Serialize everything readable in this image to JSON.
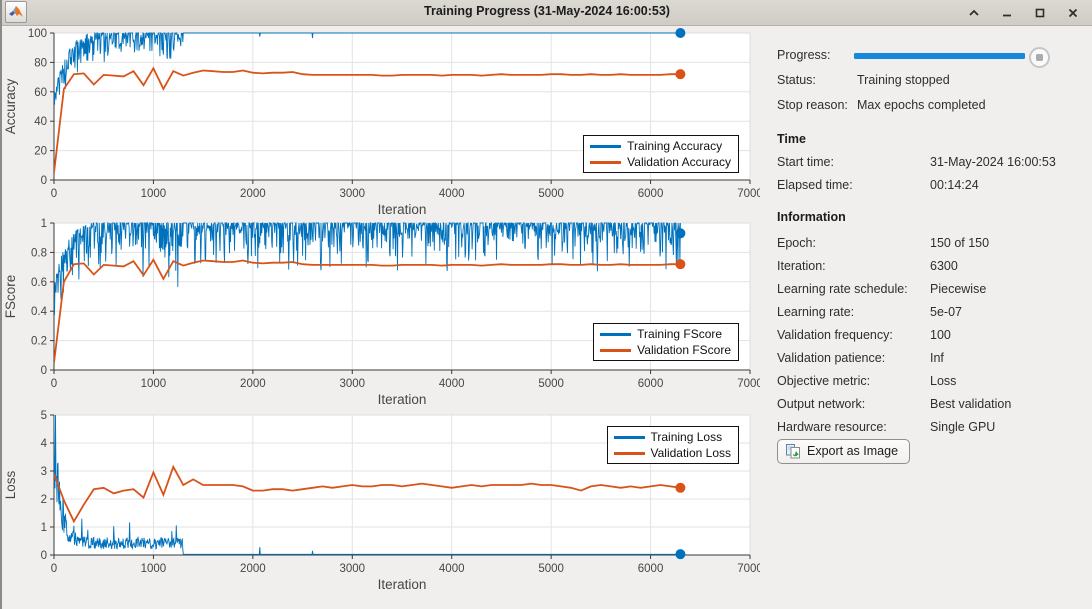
{
  "window": {
    "title": "Training Progress (31-May-2024 16:00:53)",
    "controls": [
      "collapse",
      "minimize",
      "maximize",
      "close"
    ]
  },
  "colors": {
    "training_line": "#0072BD",
    "validation_line": "#D95319",
    "progress_bar": "#1789DD",
    "grid": "#E3E3E3",
    "box_light": "#DCDCDC",
    "axis": "#3A3A3A",
    "tick_text": "#464646"
  },
  "chart_data": {
    "type": "line",
    "xlabel": "Iteration",
    "charts": [
      {
        "ylabel": "Accuracy",
        "xlim": [
          0,
          7000
        ],
        "ylim": [
          0,
          100
        ],
        "xticks": [
          0,
          1000,
          2000,
          3000,
          4000,
          5000,
          6000,
          7000
        ],
        "yticks": [
          0,
          20,
          40,
          60,
          80,
          100
        ],
        "grid": true,
        "legend": [
          "Training Accuracy",
          "Validation Accuracy"
        ],
        "legend_position": "bottom-right",
        "training": {
          "name": "Training Accuracy",
          "gen": {
            "seed": 7,
            "kind": "acc",
            "step": 5,
            "end": 6300,
            "cut": 1300,
            "max": 100,
            "drop": 45,
            "tau": 140,
            "up": 4,
            "noise": 26,
            "dips": [
              [
                2070,
                97.5
              ],
              [
                2600,
                96.5
              ]
            ]
          },
          "end_marker": [
            6300,
            100
          ]
        },
        "validation": {
          "name": "Validation Accuracy",
          "x0": 0,
          "dx": 100,
          "y": [
            5,
            62,
            72,
            72.5,
            65,
            71.5,
            71,
            70.5,
            74,
            64.5,
            76,
            62,
            74,
            71,
            73,
            74.5,
            74,
            73.5,
            73.5,
            74.5,
            73,
            72.5,
            73,
            73,
            73.5,
            72,
            71.5,
            71.5,
            71.5,
            71.5,
            71.5,
            71.5,
            71.5,
            71,
            71,
            71.5,
            71.5,
            71.5,
            71.5,
            71,
            71.5,
            71.5,
            71.5,
            71,
            71.5,
            72,
            71.5,
            71.5,
            71.5,
            71.5,
            72,
            72,
            71.5,
            71.5,
            72,
            71.5,
            71.5,
            72,
            71.5,
            71.5,
            71.5,
            71.5,
            72,
            72
          ],
          "end_marker": [
            6300,
            72
          ]
        }
      },
      {
        "ylabel": "FScore",
        "xlim": [
          0,
          7000
        ],
        "ylim": [
          0,
          1
        ],
        "xticks": [
          0,
          1000,
          2000,
          3000,
          4000,
          5000,
          6000,
          7000
        ],
        "yticks": [
          0,
          0.2,
          0.4,
          0.6,
          0.8,
          1
        ],
        "grid": true,
        "legend": [
          "Training FScore",
          "Validation FScore"
        ],
        "legend_position": "bottom-right",
        "training": {
          "name": "Training FScore",
          "gen": {
            "seed": 11,
            "kind": "fscore",
            "step": 5,
            "end": 6300,
            "cut": 1300,
            "max": 1,
            "drop": 0.45,
            "tau": 130,
            "up": 0.03,
            "noise": 0.38,
            "extra": 0.5
          },
          "end_marker": [
            6300,
            0.93
          ]
        },
        "validation": {
          "name": "Validation FScore",
          "x0": 0,
          "dx": 100,
          "y": [
            0.05,
            0.6,
            0.72,
            0.725,
            0.65,
            0.715,
            0.71,
            0.705,
            0.74,
            0.645,
            0.75,
            0.62,
            0.74,
            0.71,
            0.73,
            0.745,
            0.74,
            0.735,
            0.735,
            0.745,
            0.73,
            0.725,
            0.73,
            0.73,
            0.735,
            0.72,
            0.715,
            0.715,
            0.715,
            0.715,
            0.715,
            0.715,
            0.715,
            0.71,
            0.71,
            0.715,
            0.715,
            0.715,
            0.715,
            0.71,
            0.715,
            0.715,
            0.715,
            0.71,
            0.715,
            0.72,
            0.715,
            0.715,
            0.715,
            0.715,
            0.72,
            0.72,
            0.715,
            0.715,
            0.72,
            0.715,
            0.715,
            0.72,
            0.715,
            0.715,
            0.715,
            0.715,
            0.72,
            0.72
          ],
          "end_marker": [
            6300,
            0.72
          ]
        }
      },
      {
        "ylabel": "Loss",
        "xlim": [
          0,
          7000
        ],
        "ylim": [
          0,
          5
        ],
        "xticks": [
          0,
          1000,
          2000,
          3000,
          4000,
          5000,
          6000,
          7000
        ],
        "yticks": [
          0,
          1,
          2,
          3,
          4,
          5
        ],
        "grid": true,
        "legend": [
          "Training Loss",
          "Validation Loss"
        ],
        "legend_position": "top-right",
        "training": {
          "name": "Training Loss",
          "gen": {
            "seed": 13,
            "kind": "loss",
            "step": 5,
            "end": 6300,
            "cut": 1300,
            "base": 4.3,
            "tau": 60,
            "floor1": 0.42,
            "floor2": 0.025,
            "spike_p": 0.05,
            "spike": 0.85,
            "cap": 5.0,
            "dips": [
              [
                2070,
                0.28
              ],
              [
                2600,
                0.15
              ]
            ]
          },
          "end_marker": [
            6300,
            0.03
          ]
        },
        "validation": {
          "name": "Validation Loss",
          "x0": 0,
          "dx": 100,
          "y": [
            2.9,
            1.95,
            1.2,
            1.8,
            2.35,
            2.4,
            2.2,
            2.3,
            2.35,
            2.05,
            2.95,
            2.15,
            3.15,
            2.5,
            2.7,
            2.5,
            2.5,
            2.5,
            2.5,
            2.45,
            2.3,
            2.3,
            2.35,
            2.35,
            2.3,
            2.35,
            2.4,
            2.45,
            2.4,
            2.45,
            2.5,
            2.45,
            2.45,
            2.5,
            2.5,
            2.45,
            2.5,
            2.55,
            2.5,
            2.45,
            2.4,
            2.45,
            2.5,
            2.45,
            2.5,
            2.5,
            2.5,
            2.5,
            2.55,
            2.5,
            2.5,
            2.45,
            2.4,
            2.3,
            2.45,
            2.5,
            2.45,
            2.4,
            2.45,
            2.4,
            2.45,
            2.5,
            2.45,
            2.4
          ],
          "end_marker": [
            6300,
            2.4
          ]
        }
      }
    ]
  },
  "panel": {
    "progress_label": "Progress:",
    "progress_pct": 100,
    "status": [
      {
        "label": "Status:",
        "value": "Training stopped"
      },
      {
        "label": "Stop reason:",
        "value": "Max epochs completed"
      }
    ],
    "time": {
      "header": "Time",
      "rows": [
        {
          "label": "Start time:",
          "value": "31-May-2024 16:00:53"
        },
        {
          "label": "Elapsed time:",
          "value": "00:14:24"
        }
      ]
    },
    "info": {
      "header": "Information",
      "rows": [
        {
          "label": "Epoch:",
          "value": "150 of 150"
        },
        {
          "label": "Iteration:",
          "value": "6300"
        },
        {
          "label": "Learning rate schedule:",
          "value": "Piecewise"
        },
        {
          "label": "Learning rate:",
          "value": "5e-07"
        },
        {
          "label": "Validation frequency:",
          "value": "100"
        },
        {
          "label": "Validation patience:",
          "value": "Inf"
        },
        {
          "label": "Objective metric:",
          "value": "Loss"
        },
        {
          "label": "Output network:",
          "value": "Best validation"
        },
        {
          "label": "Hardware resource:",
          "value": "Single GPU"
        }
      ]
    },
    "export_button": "Export as Image"
  }
}
